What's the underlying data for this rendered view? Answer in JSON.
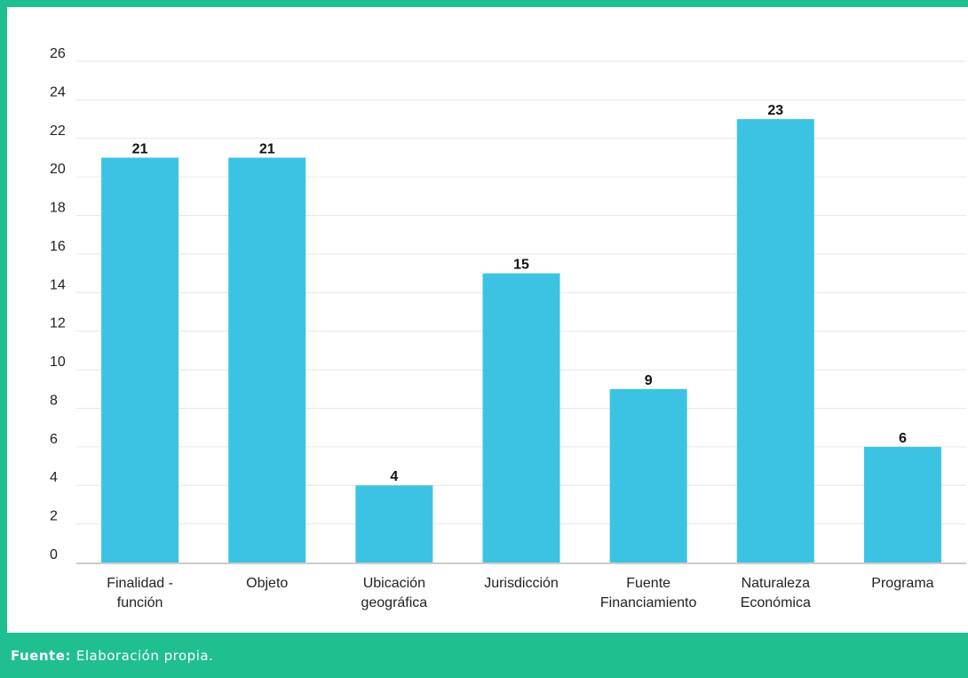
{
  "chart_data": {
    "type": "bar",
    "categories": [
      [
        "Finalidad -",
        "función"
      ],
      [
        "Objeto"
      ],
      [
        "Ubicación",
        "geográfica"
      ],
      [
        "Jurisdicción"
      ],
      [
        "Fuente",
        "Financiamiento"
      ],
      [
        "Naturaleza",
        "Económica"
      ],
      [
        "Programa"
      ]
    ],
    "values": [
      21,
      21,
      4,
      15,
      9,
      23,
      6
    ],
    "ylim": [
      0,
      26
    ],
    "yticks": [
      0,
      2,
      4,
      6,
      8,
      10,
      12,
      14,
      16,
      18,
      20,
      22,
      24,
      26
    ],
    "grid": true,
    "title": "",
    "xlabel": "",
    "ylabel": "",
    "bar_color": "#3cc3e3",
    "grid_color": "#e6e6e6"
  },
  "footer": {
    "source_label": "Fuente:",
    "source_text": "Elaboración propia."
  },
  "colors": {
    "accent": "#1fbf8f"
  }
}
